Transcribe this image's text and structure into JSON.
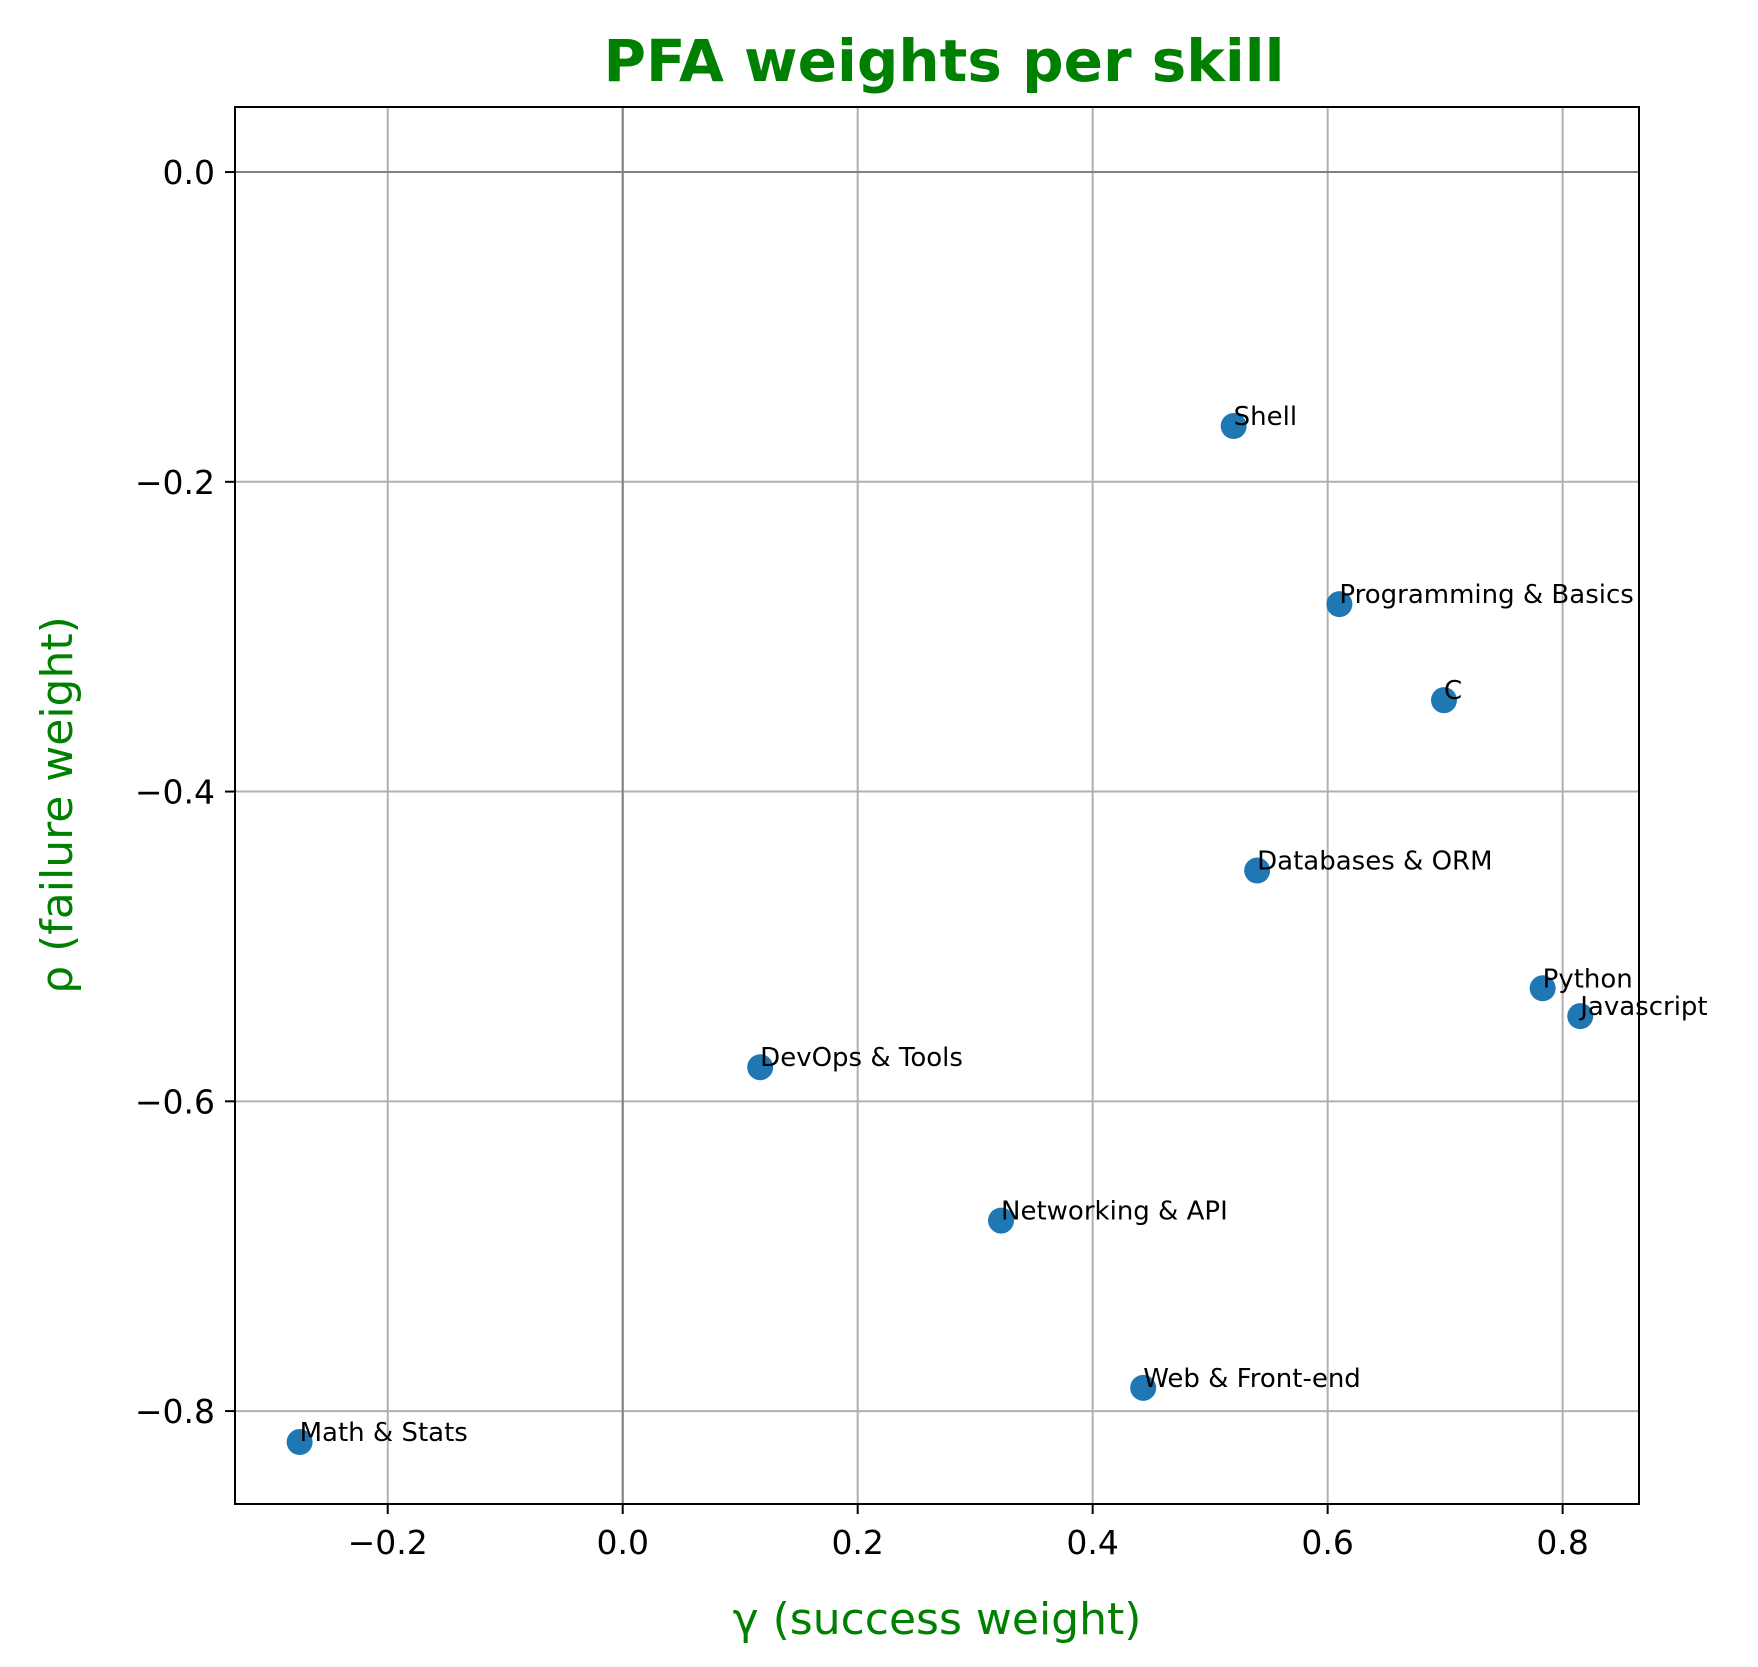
{
  "colors": {
    "title": "#008000",
    "axis_label": "#008000",
    "marker": "#1f77b4",
    "grid": "#b0b0b0",
    "zero_line": "#808080"
  },
  "chart_data": {
    "type": "scatter",
    "title": "PFA weights per skill",
    "xlabel": "γ (success weight)",
    "ylabel": "ρ (failure weight)",
    "xlim": [
      -0.33,
      0.865
    ],
    "ylim": [
      -0.86,
      0.042
    ],
    "xticks": [
      -0.2,
      0.0,
      0.2,
      0.4,
      0.6,
      0.8
    ],
    "xtick_labels": [
      "−0.2",
      "0.0",
      "0.2",
      "0.4",
      "0.6",
      "0.8"
    ],
    "yticks": [
      0.0,
      -0.2,
      -0.4,
      -0.6,
      -0.8
    ],
    "ytick_labels": [
      "0.0",
      "−0.2",
      "−0.4",
      "−0.6",
      "−0.8"
    ],
    "grid": true,
    "zero_lines": true,
    "points": [
      {
        "label": "Shell",
        "x": 0.52,
        "y": -0.164
      },
      {
        "label": "Programming & Basics",
        "x": 0.61,
        "y": -0.279
      },
      {
        "label": "C",
        "x": 0.699,
        "y": -0.341
      },
      {
        "label": "Databases & ORM",
        "x": 0.54,
        "y": -0.451
      },
      {
        "label": "Python",
        "x": 0.783,
        "y": -0.527
      },
      {
        "label": "Javascript",
        "x": 0.815,
        "y": -0.545
      },
      {
        "label": "DevOps & Tools",
        "x": 0.117,
        "y": -0.578
      },
      {
        "label": "Networking & API",
        "x": 0.322,
        "y": -0.677
      },
      {
        "label": "Web & Front-end",
        "x": 0.443,
        "y": -0.785
      },
      {
        "label": "Math & Stats",
        "x": -0.275,
        "y": -0.82
      }
    ]
  }
}
